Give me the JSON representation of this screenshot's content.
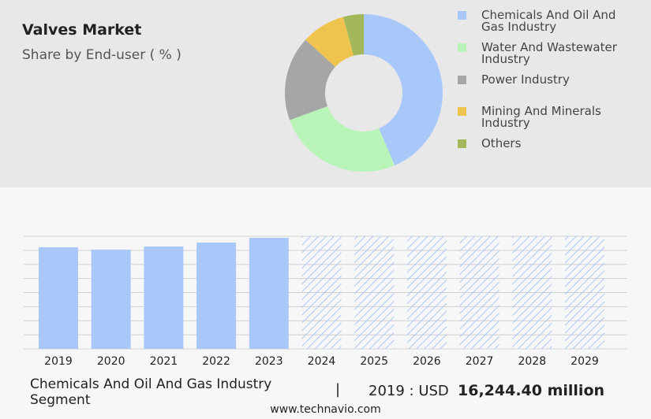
{
  "chart_data": [
    {
      "type": "donut",
      "title": "Valves Market",
      "subtitle": "Share by End-user ( % )",
      "categories": [
        "Chemicals And Oil And Gas Industry",
        "Water And Wastewater Industry",
        "Power Industry",
        "Mining And Minerals Industry",
        "Others"
      ],
      "values": [
        43.6,
        25.8,
        17.4,
        9,
        4.2
      ],
      "colors": [
        "#a8c8fa",
        "#b8f4b8",
        "#a6a6a6",
        "#eec44e",
        "#a3b85a"
      ]
    },
    {
      "type": "bar",
      "categories": [
        "2019",
        "2020",
        "2021",
        "2022",
        "2023",
        "2024",
        "2025",
        "2026",
        "2027",
        "2028",
        "2029"
      ],
      "values": [
        16244.4,
        15870,
        16370,
        17000,
        17750,
        null,
        null,
        null,
        null,
        null,
        null
      ],
      "color": "#a8c8fa",
      "ylim": [
        0,
        18000
      ],
      "grid": true,
      "highlight": {
        "segment": "Chemicals And Oil And Gas Industry Segment",
        "separator": "|",
        "label": "2019 : USD",
        "value": "16,244.40 million"
      },
      "source": "www.technavio.com"
    }
  ]
}
